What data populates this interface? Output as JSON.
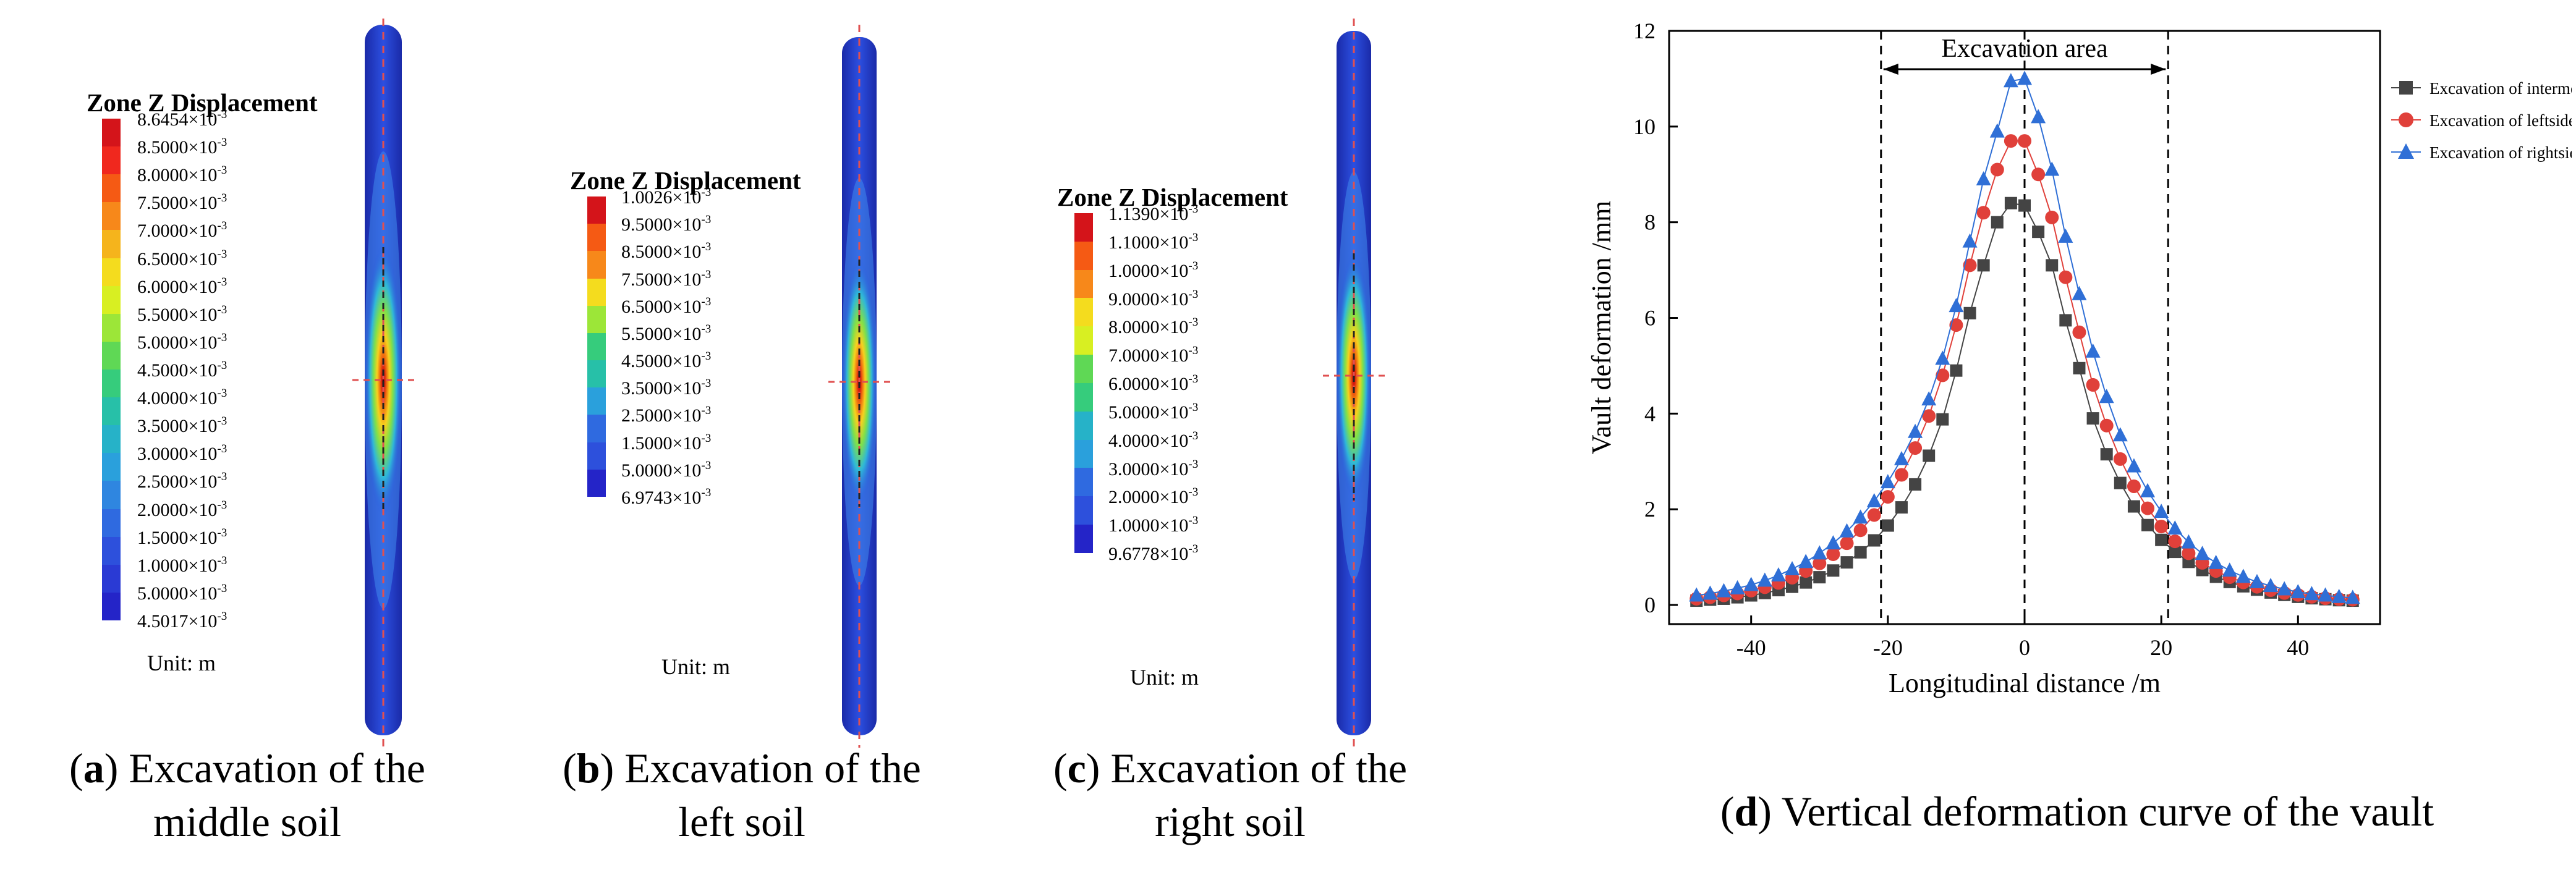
{
  "panels": [
    {
      "id": "a",
      "legend_title": "Zone Z Displacement",
      "legend_labels": [
        {
          "v": "8.6454×10",
          "e": "-3"
        },
        {
          "v": "8.5000×10",
          "e": "-3"
        },
        {
          "v": "8.0000×10",
          "e": "-3"
        },
        {
          "v": "7.5000×10",
          "e": "-3"
        },
        {
          "v": "7.0000×10",
          "e": "-3"
        },
        {
          "v": "6.5000×10",
          "e": "-3"
        },
        {
          "v": "6.0000×10",
          "e": "-3"
        },
        {
          "v": "5.5000×10",
          "e": "-3"
        },
        {
          "v": "5.0000×10",
          "e": "-3"
        },
        {
          "v": "4.5000×10",
          "e": "-3"
        },
        {
          "v": "4.0000×10",
          "e": "-3"
        },
        {
          "v": "3.5000×10",
          "e": "-3"
        },
        {
          "v": "3.0000×10",
          "e": "-3"
        },
        {
          "v": "2.5000×10",
          "e": "-3"
        },
        {
          "v": "2.0000×10",
          "e": "-3"
        },
        {
          "v": "1.5000×10",
          "e": "-3"
        },
        {
          "v": "1.0000×10",
          "e": "-3"
        },
        {
          "v": "5.0000×10",
          "e": "-3"
        },
        {
          "v": "4.5017×10",
          "e": "-3"
        }
      ],
      "unit": "Unit: m",
      "caption_letter": "a",
      "caption_line1": "Excavation of the",
      "caption_line2": "middle soil"
    },
    {
      "id": "b",
      "legend_title": "Zone Z Displacement",
      "legend_labels": [
        {
          "v": "1.0026×10",
          "e": "-3"
        },
        {
          "v": "9.5000×10",
          "e": "-3"
        },
        {
          "v": "8.5000×10",
          "e": "-3"
        },
        {
          "v": "7.5000×10",
          "e": "-3"
        },
        {
          "v": "6.5000×10",
          "e": "-3"
        },
        {
          "v": "5.5000×10",
          "e": "-3"
        },
        {
          "v": "4.5000×10",
          "e": "-3"
        },
        {
          "v": "3.5000×10",
          "e": "-3"
        },
        {
          "v": "2.5000×10",
          "e": "-3"
        },
        {
          "v": "1.5000×10",
          "e": "-3"
        },
        {
          "v": "5.0000×10",
          "e": "-3"
        },
        {
          "v": "6.9743×10",
          "e": "-3"
        }
      ],
      "unit": "Unit: m",
      "caption_letter": "b",
      "caption_line1": "Excavation of the",
      "caption_line2": "left soil"
    },
    {
      "id": "c",
      "legend_title": "Zone Z Displacement",
      "legend_labels": [
        {
          "v": "1.1390×10",
          "e": "-3"
        },
        {
          "v": "1.1000×10",
          "e": "-3"
        },
        {
          "v": "1.0000×10",
          "e": "-3"
        },
        {
          "v": "9.0000×10",
          "e": "-3"
        },
        {
          "v": "8.0000×10",
          "e": "-3"
        },
        {
          "v": "7.0000×10",
          "e": "-3"
        },
        {
          "v": "6.0000×10",
          "e": "-3"
        },
        {
          "v": "5.0000×10",
          "e": "-3"
        },
        {
          "v": "4.0000×10",
          "e": "-3"
        },
        {
          "v": "3.0000×10",
          "e": "-3"
        },
        {
          "v": "2.0000×10",
          "e": "-3"
        },
        {
          "v": "1.0000×10",
          "e": "-3"
        },
        {
          "v": "9.6778×10",
          "e": "-3"
        }
      ],
      "unit": "Unit: m",
      "caption_letter": "c",
      "caption_line1": "Excavation of the",
      "caption_line2": "right soil"
    }
  ],
  "chart_caption": {
    "letter": "d",
    "text": "Vertical deformation curve of the vault"
  },
  "chart_data": {
    "type": "line",
    "title": "",
    "xlabel": "Longitudinal distance /m",
    "ylabel": "Vault  deformation /mm",
    "xlim": [
      -52,
      52
    ],
    "ylim": [
      -0.4,
      12
    ],
    "xticks": [
      -40,
      -20,
      0,
      20,
      40
    ],
    "yticks": [
      0,
      2,
      4,
      6,
      8,
      10,
      12
    ],
    "annotation": "Excavation area",
    "excavation_area": [
      -21,
      21
    ],
    "center_line": 0,
    "legend_position": "top-right",
    "x": [
      -48,
      -46,
      -44,
      -42,
      -40,
      -38,
      -36,
      -34,
      -32,
      -30,
      -28,
      -26,
      -24,
      -22,
      -20,
      -18,
      -16,
      -14,
      -12,
      -10,
      -8,
      -6,
      -4,
      -2,
      0,
      2,
      4,
      6,
      8,
      10,
      12,
      14,
      16,
      18,
      20,
      22,
      24,
      26,
      28,
      30,
      32,
      34,
      36,
      38,
      40,
      42,
      44,
      46,
      48
    ],
    "series": [
      {
        "name": "Excavation of intermediate soil",
        "marker": "square",
        "color": "#444444",
        "values": [
          0.09,
          0.11,
          0.13,
          0.16,
          0.2,
          0.25,
          0.31,
          0.38,
          0.47,
          0.58,
          0.72,
          0.89,
          1.1,
          1.35,
          1.66,
          2.04,
          2.52,
          3.12,
          3.88,
          4.9,
          6.1,
          7.1,
          8.0,
          8.4,
          8.35,
          7.8,
          7.1,
          5.95,
          4.95,
          3.9,
          3.15,
          2.55,
          2.06,
          1.67,
          1.36,
          1.11,
          0.9,
          0.73,
          0.59,
          0.48,
          0.39,
          0.32,
          0.26,
          0.21,
          0.17,
          0.14,
          0.12,
          0.1,
          0.09
        ]
      },
      {
        "name": "Excavation of leftside soil",
        "marker": "circle",
        "color": "#e0403a",
        "values": [
          0.13,
          0.16,
          0.2,
          0.24,
          0.3,
          0.37,
          0.46,
          0.57,
          0.71,
          0.87,
          1.06,
          1.29,
          1.56,
          1.88,
          2.26,
          2.72,
          3.28,
          3.95,
          4.8,
          5.85,
          7.1,
          8.2,
          9.1,
          9.7,
          9.7,
          9.0,
          8.1,
          6.85,
          5.7,
          4.6,
          3.75,
          3.05,
          2.48,
          2.02,
          1.64,
          1.33,
          1.08,
          0.88,
          0.71,
          0.58,
          0.47,
          0.38,
          0.31,
          0.25,
          0.21,
          0.17,
          0.14,
          0.12,
          0.11
        ]
      },
      {
        "name": "Excavation of rightside soil",
        "marker": "triangle",
        "color": "#2f6fd6",
        "values": [
          0.2,
          0.24,
          0.29,
          0.35,
          0.42,
          0.51,
          0.62,
          0.75,
          0.9,
          1.08,
          1.29,
          1.54,
          1.83,
          2.17,
          2.57,
          3.05,
          3.62,
          4.3,
          5.15,
          6.25,
          7.6,
          8.9,
          9.9,
          10.95,
          11.0,
          10.2,
          9.1,
          7.7,
          6.5,
          5.3,
          4.35,
          3.55,
          2.9,
          2.38,
          1.95,
          1.6,
          1.31,
          1.07,
          0.88,
          0.72,
          0.59,
          0.48,
          0.4,
          0.33,
          0.27,
          0.23,
          0.2,
          0.17,
          0.15
        ]
      }
    ]
  }
}
